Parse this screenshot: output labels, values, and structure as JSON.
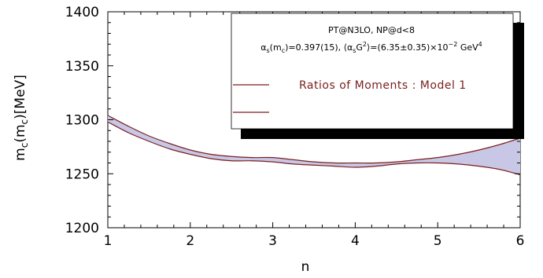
{
  "chart_data": {
    "type": "area",
    "xlabel": "n",
    "ylabel": "m_c(m_c)[MeV]",
    "xlim": [
      1,
      6
    ],
    "ylim": [
      1200,
      1400
    ],
    "xticks": [
      "1",
      "2",
      "3",
      "4",
      "5",
      "6"
    ],
    "yticks": [
      "1200",
      "1250",
      "1300",
      "1350",
      "1400"
    ],
    "grid": false,
    "legend_position": "top-right",
    "legend_lines": [
      "PT@N3LO, NP@d<8",
      "α_s(m_c)=0.397(15), ⟨α_s G^2⟩=(6.35±0.35)×10^-2 GeV^4"
    ],
    "series": [
      {
        "name": "Ratios of Moments : Model 1",
        "x": [
          1.0,
          1.25,
          1.5,
          1.75,
          2.0,
          2.25,
          2.5,
          2.75,
          3.0,
          3.25,
          3.5,
          3.75,
          4.0,
          4.25,
          4.5,
          4.75,
          5.0,
          5.25,
          5.5,
          5.75,
          6.0
        ],
        "upper": [
          1304,
          1294,
          1285,
          1278,
          1272,
          1268,
          1266,
          1265,
          1265,
          1263,
          1261,
          1260,
          1260,
          1260,
          1261,
          1263,
          1265,
          1268,
          1272,
          1277,
          1283
        ],
        "lower": [
          1298,
          1288,
          1280,
          1273,
          1268,
          1264,
          1262,
          1262,
          1261,
          1259,
          1258,
          1257,
          1256,
          1257,
          1259,
          1260,
          1260,
          1259,
          1257,
          1254,
          1249
        ],
        "fill": "#c8c8e6",
        "line": "#7a1f1f"
      }
    ]
  }
}
